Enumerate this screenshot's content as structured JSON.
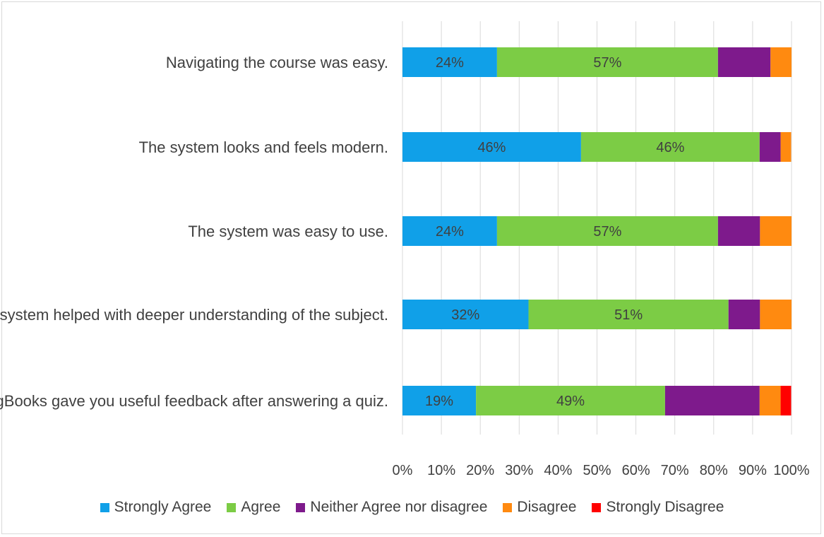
{
  "chart_data": {
    "type": "bar",
    "orientation": "horizontal",
    "stacked": "percent",
    "categories": [
      "Navigating the course was easy.",
      "The system looks and feels modern.",
      "The system was easy to use.",
      "The system helped with deeper understanding of the subject.",
      "CogBooks gave you useful feedback after answering a quiz."
    ],
    "series": [
      {
        "name": "Strongly Agree",
        "color": "#10a0e8",
        "values": [
          24.3,
          45.9,
          24.3,
          32.4,
          18.9
        ],
        "labels": [
          "24%",
          "46%",
          "24%",
          "32%",
          "19%"
        ]
      },
      {
        "name": "Agree",
        "color": "#7ccc45",
        "values": [
          56.8,
          45.9,
          56.8,
          51.4,
          48.6
        ],
        "labels": [
          "57%",
          "46%",
          "57%",
          "51%",
          "49%"
        ]
      },
      {
        "name": "Neither Agree nor disagree",
        "color": "#7e1a8c",
        "values": [
          13.5,
          5.4,
          10.8,
          8.1,
          24.3
        ],
        "labels": [
          "",
          "",
          "",
          "",
          ""
        ]
      },
      {
        "name": "Disagree",
        "color": "#ff8a10",
        "values": [
          5.4,
          2.7,
          8.1,
          8.1,
          5.4
        ],
        "labels": [
          "",
          "",
          "",
          "",
          ""
        ]
      },
      {
        "name": "Strongly Disagree",
        "color": "#ff0000",
        "values": [
          0,
          0,
          0,
          0,
          2.7
        ],
        "labels": [
          "",
          "",
          "",
          "",
          ""
        ]
      }
    ],
    "xlim": [
      0,
      100
    ],
    "xticks": [
      "0%",
      "10%",
      "20%",
      "30%",
      "40%",
      "50%",
      "60%",
      "70%",
      "80%",
      "90%",
      "100%"
    ],
    "grid": true,
    "legend": "bottom",
    "title": "",
    "xlabel": "",
    "ylabel": ""
  }
}
